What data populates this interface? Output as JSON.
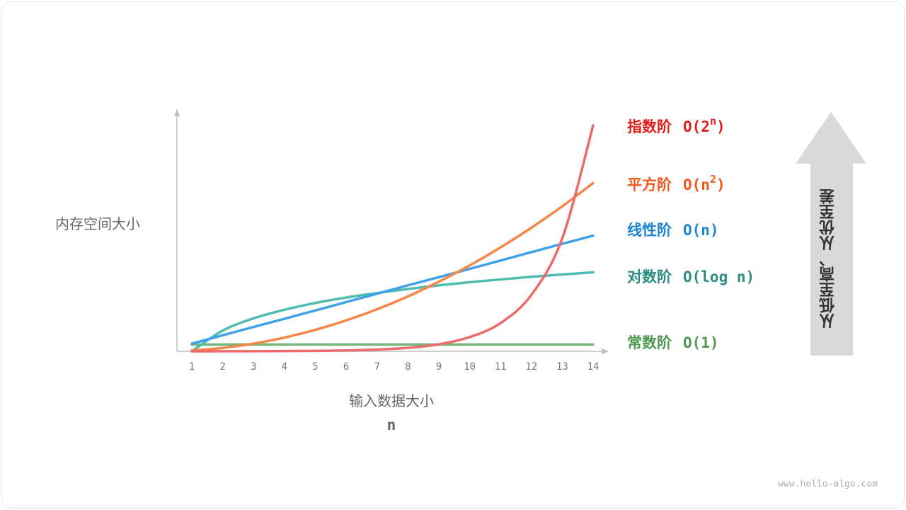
{
  "chart_data": {
    "type": "line",
    "x": [
      1,
      2,
      3,
      4,
      5,
      6,
      7,
      8,
      9,
      10,
      11,
      12,
      13,
      14
    ],
    "xlabel": "输入数据大小",
    "xvar": "n",
    "ylabel": "内存空间大小",
    "xlim": [
      1,
      14
    ],
    "ylim": [
      0,
      100
    ],
    "grid": false,
    "series": [
      {
        "name": "常数阶",
        "notation": "O(1)",
        "color": "#77b57a",
        "text_color": "#4f9a52",
        "values": [
          3,
          3,
          3,
          3,
          3,
          3,
          3,
          3,
          3,
          3,
          3,
          3,
          3,
          3
        ]
      },
      {
        "name": "对数阶",
        "notation": "O(log n)",
        "color": "#4fbcb0",
        "text_color": "#2e8d82",
        "values": [
          0,
          9.2,
          14.6,
          18.4,
          21.4,
          23.8,
          25.8,
          27.6,
          29.2,
          30.6,
          31.8,
          33,
          34,
          35
        ]
      },
      {
        "name": "线性阶",
        "notation": "O(n)",
        "color": "#3fa2e8",
        "text_color": "#1c86d2",
        "values": [
          3.4,
          7.1,
          10.8,
          14.4,
          18.1,
          21.8,
          25.5,
          29.2,
          32.8,
          36.5,
          40.2,
          43.9,
          47.6,
          51.2
        ]
      },
      {
        "name": "平方阶",
        "notation_base": "O(n",
        "notation_sup": "2",
        "notation_end": ")",
        "color": "#f78649",
        "text_color": "#f2581c",
        "values": [
          0.4,
          1.5,
          3.4,
          6.1,
          9.5,
          13.7,
          18.6,
          24.3,
          30.8,
          38,
          46,
          54.7,
          64.2,
          74.5
        ]
      },
      {
        "name": "指数阶",
        "notation_base": "O(2",
        "notation_sup": "n",
        "notation_end": ")",
        "color": "#ee6a6a",
        "text_color": "#e31c1c",
        "values": [
          0.01,
          0.02,
          0.05,
          0.1,
          0.2,
          0.39,
          0.78,
          1.56,
          3.1,
          6.3,
          12.5,
          25,
          50,
          100
        ]
      }
    ]
  },
  "arrow_label": "从低至高、从优至差",
  "watermark": "www.hello-algo.com"
}
